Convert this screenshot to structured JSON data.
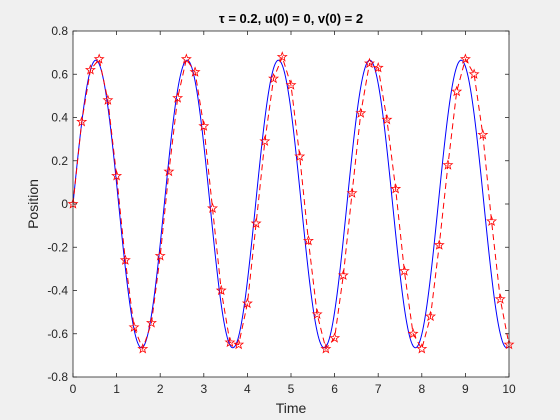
{
  "chart_data": {
    "type": "line",
    "title": "τ = 0.2,  u(0) = 0,  v(0) = 2",
    "xlabel": "Time",
    "ylabel": "Position",
    "xlim": [
      0,
      10
    ],
    "ylim": [
      -0.8,
      0.8
    ],
    "xticks": [
      0,
      1,
      2,
      3,
      4,
      5,
      6,
      7,
      8,
      9,
      10
    ],
    "yticks": [
      -0.8,
      -0.6,
      -0.4,
      -0.2,
      0,
      0.2,
      0.4,
      0.6,
      0.8
    ],
    "xtick_labels": [
      "0",
      "1",
      "2",
      "3",
      "4",
      "5",
      "6",
      "7",
      "8",
      "9",
      "10"
    ],
    "ytick_labels": [
      "-0.8",
      "-0.6",
      "-0.4",
      "-0.2",
      "0",
      "0.2",
      "0.4",
      "0.6",
      "0.8"
    ],
    "grid": false,
    "series": [
      {
        "style": "solid",
        "color": "#0000ff",
        "model": {
          "amplitude": 0.665,
          "omega": 3.0,
          "t_min": 0,
          "t_max": 10
        }
      },
      {
        "style": "dashed",
        "color": "#ff0000",
        "marker": "pentagram",
        "x": [
          0,
          0.2,
          0.4,
          0.6,
          0.8,
          1.0,
          1.2,
          1.4,
          1.6,
          1.8,
          2.0,
          2.2,
          2.4,
          2.6,
          2.8,
          3.0,
          3.2,
          3.4,
          3.6,
          3.8,
          4.0,
          4.2,
          4.4,
          4.6,
          4.8,
          5.0,
          5.2,
          5.4,
          5.6,
          5.8,
          6.0,
          6.2,
          6.4,
          6.6,
          6.8,
          7.0,
          7.2,
          7.4,
          7.6,
          7.8,
          8.0,
          8.2,
          8.4,
          8.6,
          8.8,
          9.0,
          9.2,
          9.4,
          9.6,
          9.8,
          10.0
        ],
        "y": [
          0,
          0.38,
          0.62,
          0.67,
          0.48,
          0.13,
          -0.26,
          -0.57,
          -0.67,
          -0.55,
          -0.24,
          0.15,
          0.49,
          0.67,
          0.61,
          0.36,
          -0.02,
          -0.4,
          -0.64,
          -0.65,
          -0.46,
          -0.09,
          0.29,
          0.58,
          0.68,
          0.55,
          0.22,
          -0.17,
          -0.51,
          -0.67,
          -0.62,
          -0.33,
          0.05,
          0.42,
          0.65,
          0.63,
          0.39,
          0.07,
          -0.31,
          -0.6,
          -0.67,
          -0.52,
          -0.19,
          0.18,
          0.52,
          0.67,
          0.6,
          0.32,
          -0.08,
          -0.44,
          -0.65
        ]
      }
    ]
  }
}
